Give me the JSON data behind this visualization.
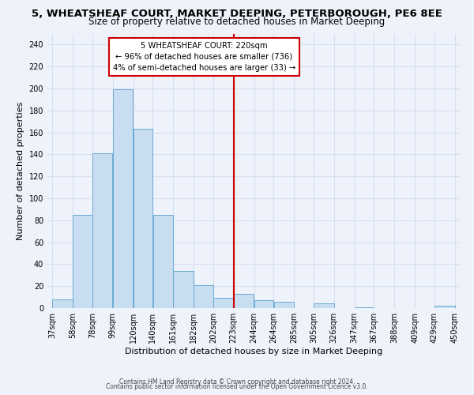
{
  "title": "5, WHEATSHEAF COURT, MARKET DEEPING, PETERBOROUGH, PE6 8EE",
  "subtitle": "Size of property relative to detached houses in Market Deeping",
  "xlabel": "Distribution of detached houses by size in Market Deeping",
  "ylabel": "Number of detached properties",
  "bar_color": "#c8ddf0",
  "bar_edge_color": "#6aaad4",
  "bins": [
    37,
    58,
    78,
    99,
    120,
    140,
    161,
    182,
    202,
    223,
    244,
    264,
    285,
    305,
    326,
    347,
    367,
    388,
    409,
    429,
    450
  ],
  "counts": [
    8,
    85,
    141,
    199,
    163,
    85,
    34,
    21,
    9,
    13,
    7,
    6,
    0,
    4,
    0,
    1,
    0,
    0,
    0,
    2
  ],
  "tick_labels": [
    "37sqm",
    "58sqm",
    "78sqm",
    "99sqm",
    "120sqm",
    "140sqm",
    "161sqm",
    "182sqm",
    "202sqm",
    "223sqm",
    "244sqm",
    "264sqm",
    "285sqm",
    "305sqm",
    "326sqm",
    "347sqm",
    "367sqm",
    "388sqm",
    "409sqm",
    "429sqm",
    "450sqm"
  ],
  "vline_x": 223,
  "vline_color": "#cc0000",
  "annotation_title": "5 WHEATSHEAF COURT: 220sqm",
  "annotation_line1": "← 96% of detached houses are smaller (736)",
  "annotation_line2": "4% of semi-detached houses are larger (33) →",
  "ylim": [
    0,
    250
  ],
  "yticks": [
    0,
    20,
    40,
    60,
    80,
    100,
    120,
    140,
    160,
    180,
    200,
    220,
    240
  ],
  "footer1": "Contains HM Land Registry data © Crown copyright and database right 2024.",
  "footer2": "Contains public sector information licensed under the Open Government Licence v3.0.",
  "background_color": "#eef2fa",
  "grid_color": "#d8dff0",
  "title_fontsize": 9.5,
  "subtitle_fontsize": 8.5,
  "axis_label_fontsize": 8,
  "tick_fontsize": 7,
  "footer_fontsize": 5.5
}
